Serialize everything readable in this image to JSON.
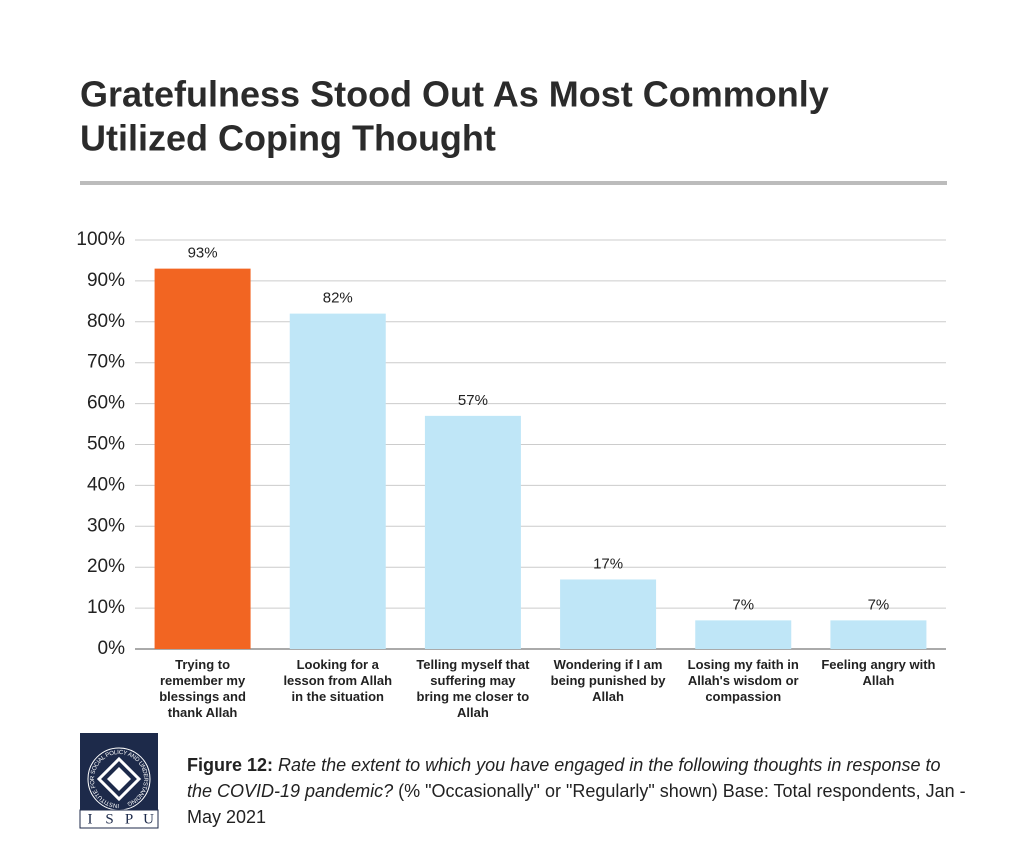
{
  "chart_data": {
    "type": "bar",
    "title": "Gratefulness Stood Out As Most Commonly",
    "title_line2": "Utilized Coping Thought",
    "categories": [
      "Trying to remember my blessings and thank Allah",
      "Looking for a lesson from Allah in the situation",
      "Telling myself that suffering may bring me closer to Allah",
      "Wondering if I am being punished by Allah",
      "Losing my faith in Allah's wisdom or compassion",
      "Feeling angry with Allah"
    ],
    "values": [
      93,
      82,
      57,
      17,
      7,
      7
    ],
    "value_labels": [
      "93%",
      "82%",
      "57%",
      "17%",
      "7%",
      "7%"
    ],
    "colors": [
      "#f26522",
      "#bfe6f7",
      "#bfe6f7",
      "#bfe6f7",
      "#bfe6f7",
      "#bfe6f7"
    ],
    "ylim": [
      0,
      100
    ],
    "yticks": [
      {
        "value": 0,
        "label": "0%"
      },
      {
        "value": 10,
        "label": "10%"
      },
      {
        "value": 20,
        "label": "20%"
      },
      {
        "value": 30,
        "label": "30%"
      },
      {
        "value": 40,
        "label": "40%"
      },
      {
        "value": 50,
        "label": "50%"
      },
      {
        "value": 60,
        "label": "60%"
      },
      {
        "value": 70,
        "label": "70%"
      },
      {
        "value": 80,
        "label": "80%"
      },
      {
        "value": 90,
        "label": "90%"
      },
      {
        "value": 100,
        "label": "100%"
      }
    ],
    "grid": true
  },
  "footnote": {
    "label": "Figure 12:",
    "question": "Rate the extent to which you have engaged in the following thoughts in response to the COVID-19 pandemic?",
    "note": "(% \"Occasionally\" or \"Regularly\" shown) Base: Total respondents, Jan - May 2021"
  },
  "logo": {
    "letters": [
      "I",
      "S",
      "P",
      "U"
    ],
    "ring": "INSTITUTE FOR SOCIAL POLICY AND UNDERSTANDING"
  }
}
